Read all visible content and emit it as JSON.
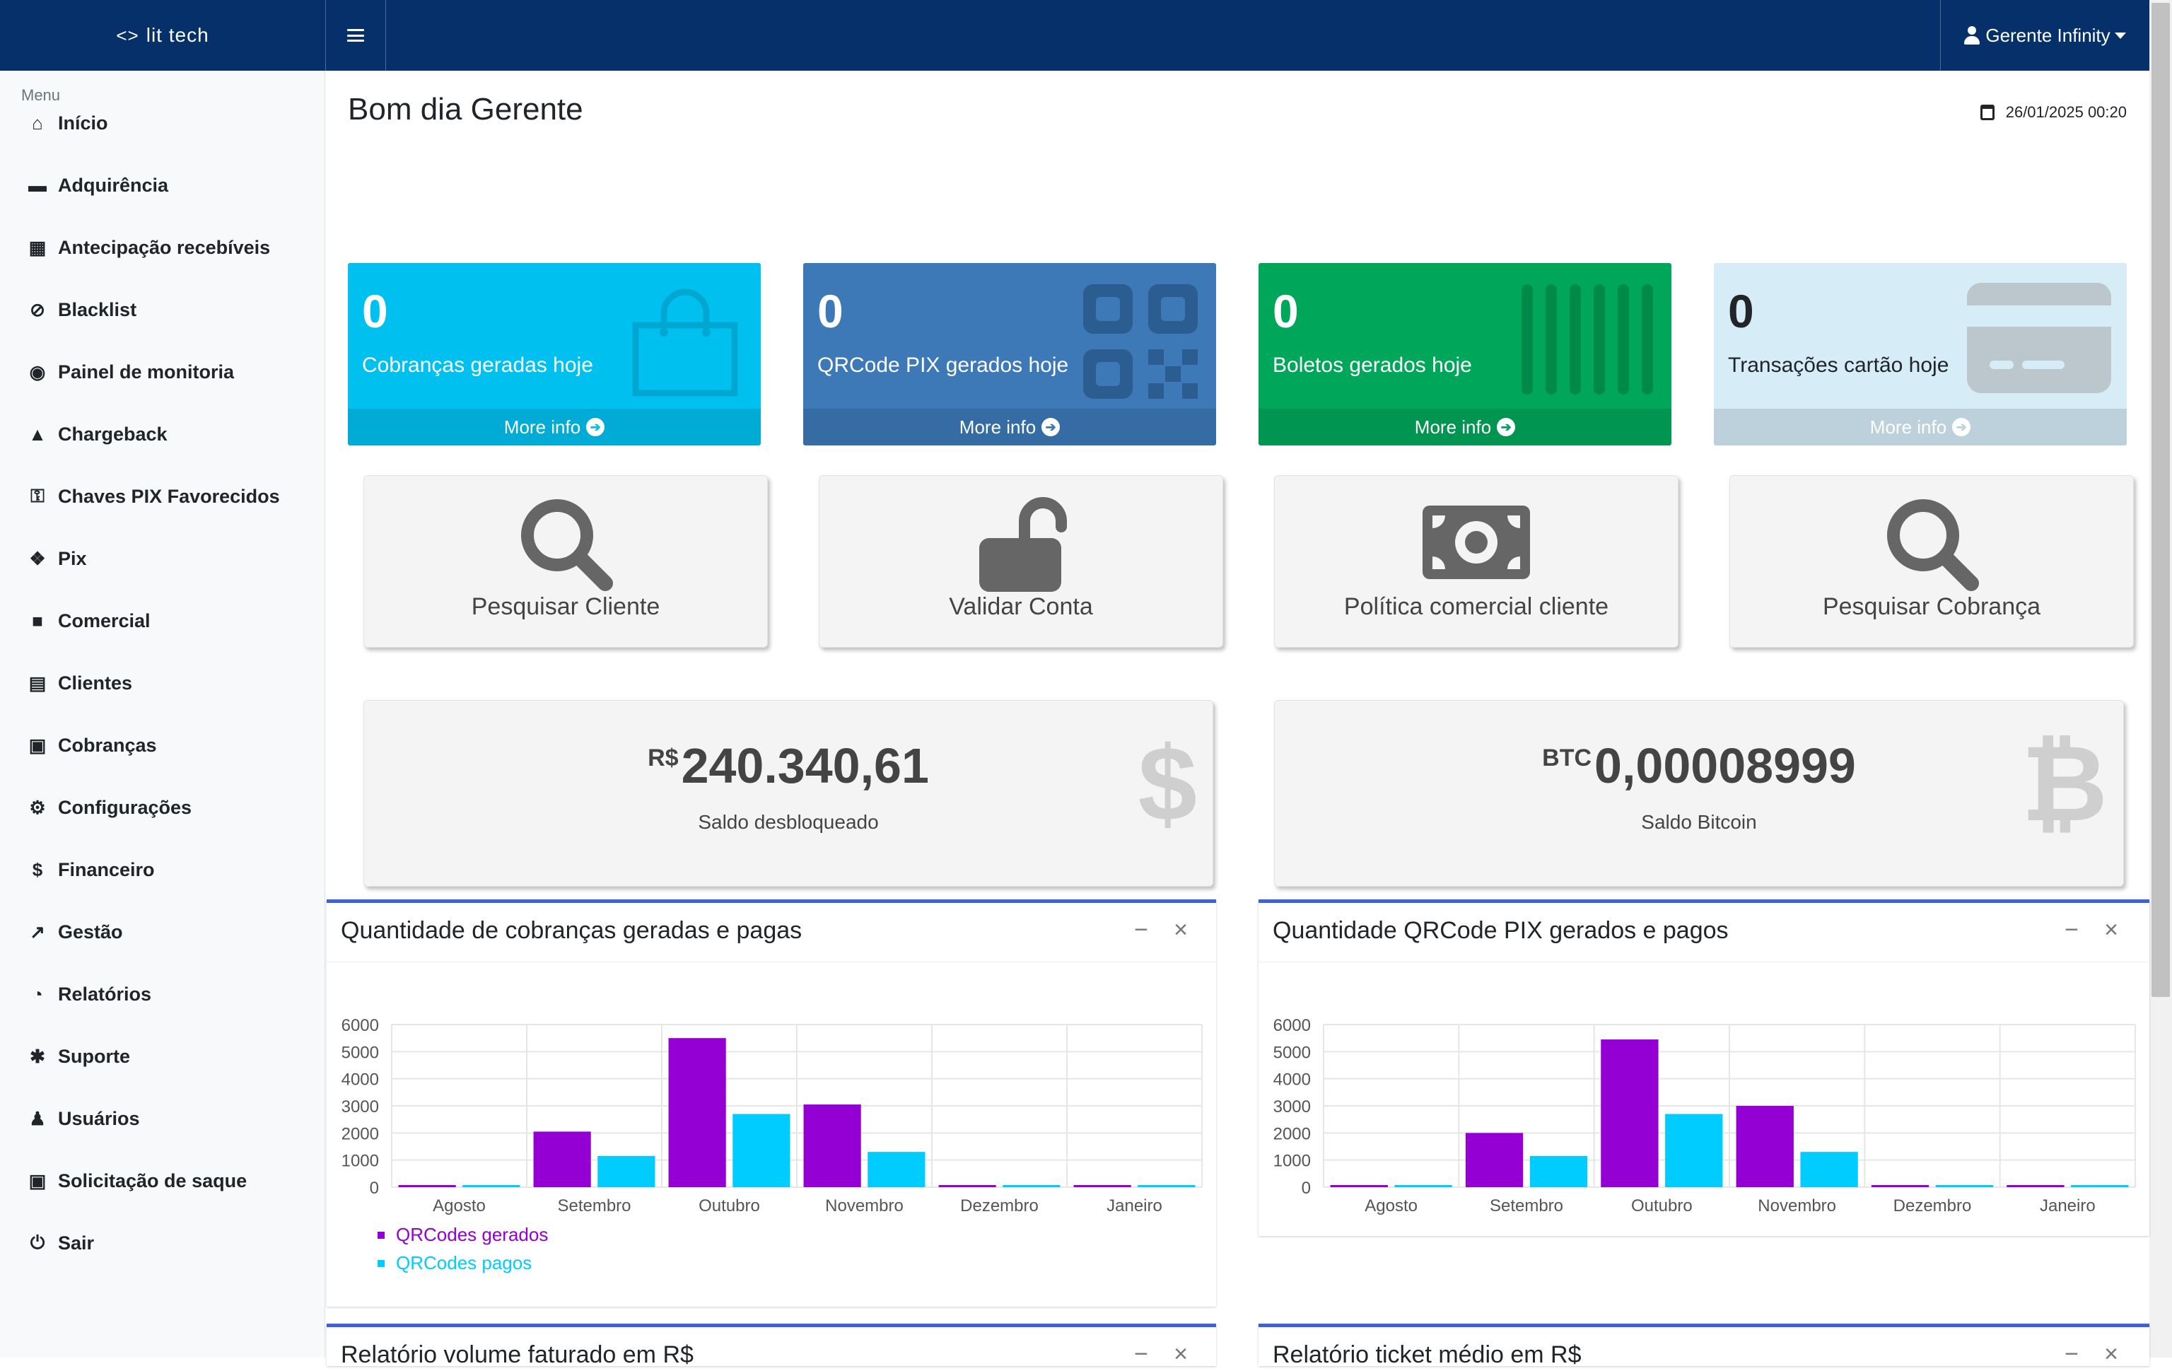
{
  "app": {
    "brand": "lit tech",
    "brand_logo": "<>"
  },
  "user": {
    "name": "Gerente Infinity"
  },
  "sidebar": {
    "header": "Menu",
    "items": [
      {
        "label": "Início",
        "icon": "⌂"
      },
      {
        "label": "Adquirência",
        "icon": "▬"
      },
      {
        "label": "Antecipação recebíveis",
        "icon": "▦"
      },
      {
        "label": "Blacklist",
        "icon": "⊘"
      },
      {
        "label": "Painel de monitoria",
        "icon": "◉"
      },
      {
        "label": "Chargeback",
        "icon": "▲"
      },
      {
        "label": "Chaves PIX Favorecidos",
        "icon": "⚿"
      },
      {
        "label": "Pix",
        "icon": "❖"
      },
      {
        "label": "Comercial",
        "icon": "■"
      },
      {
        "label": "Clientes",
        "icon": "▤"
      },
      {
        "label": "Cobranças",
        "icon": "▣"
      },
      {
        "label": "Configurações",
        "icon": "⚙"
      },
      {
        "label": "Financeiro",
        "icon": "$"
      },
      {
        "label": "Gestão",
        "icon": "↗"
      },
      {
        "label": "Relatórios",
        "icon": "◔"
      },
      {
        "label": "Suporte",
        "icon": "✱"
      },
      {
        "label": "Usuários",
        "icon": "♟"
      },
      {
        "label": "Solicitação de saque",
        "icon": "▣"
      },
      {
        "label": "Sair",
        "icon": "⏻"
      }
    ]
  },
  "main": {
    "greeting": "Bom dia Gerente",
    "datetime": "26/01/2025 00:20",
    "stats": [
      {
        "value": "0",
        "label": "Cobranças geradas hoje",
        "footer": "More info",
        "color": "#00c0ef",
        "icon": "shopping-bag-icon"
      },
      {
        "value": "0",
        "label": "QRCode PIX gerados hoje",
        "footer": "More info",
        "color": "#3c79b6",
        "icon": "qrcode-icon"
      },
      {
        "value": "0",
        "label": "Boletos gerados hoje",
        "footer": "More info",
        "color": "#00a65a",
        "icon": "barcode-icon"
      },
      {
        "value": "0",
        "label": "Transações cartão hoje",
        "footer": "More info",
        "color": "#d6ecf6",
        "icon": "credit-card-icon"
      }
    ],
    "actions": [
      {
        "label": "Pesquisar Cliente",
        "icon": "search-icon"
      },
      {
        "label": "Validar Conta",
        "icon": "unlock-icon"
      },
      {
        "label": "Política comercial cliente",
        "icon": "money-bill-icon"
      },
      {
        "label": "Pesquisar Cobrança",
        "icon": "search-icon"
      }
    ],
    "balances": [
      {
        "currency": "R$",
        "value": "240.340,61",
        "label": "Saldo desbloqueado",
        "icon": "$"
      },
      {
        "currency": "BTC",
        "value": "0,00008999",
        "label": "Saldo Bitcoin",
        "icon": "₿"
      }
    ],
    "lower_titles": [
      "Relatório volume faturado em R$",
      "Relatório ticket médio em R$"
    ]
  },
  "chart_data": [
    {
      "type": "bar",
      "title": "Quantidade de cobranças geradas e pagas",
      "categories": [
        "Agosto",
        "Setembro",
        "Outubro",
        "Novembro",
        "Dezembro",
        "Janeiro"
      ],
      "series": [
        {
          "name": "QRCodes gerados",
          "color": "#9400d3",
          "values": [
            40,
            2050,
            5500,
            3050,
            30,
            20
          ]
        },
        {
          "name": "QRCodes pagos",
          "color": "#00ccff",
          "values": [
            20,
            1150,
            2700,
            1300,
            10,
            5
          ]
        }
      ],
      "ylim": [
        0,
        6000
      ],
      "yticks": [
        0,
        1000,
        2000,
        3000,
        4000,
        5000,
        6000
      ],
      "legend": "bottom-left",
      "grid": true
    },
    {
      "type": "bar",
      "title": "Quantidade QRCode PIX gerados e pagos",
      "categories": [
        "Agosto",
        "Setembro",
        "Outubro",
        "Novembro",
        "Dezembro",
        "Janeiro"
      ],
      "series": [
        {
          "color": "#9400d3",
          "values": [
            40,
            2000,
            5450,
            3000,
            30,
            20
          ]
        },
        {
          "color": "#00ccff",
          "values": [
            20,
            1150,
            2700,
            1300,
            10,
            5
          ]
        }
      ],
      "ylim": [
        0,
        6000
      ],
      "yticks": [
        0,
        1000,
        2000,
        3000,
        4000,
        5000,
        6000
      ],
      "grid": true
    }
  ]
}
